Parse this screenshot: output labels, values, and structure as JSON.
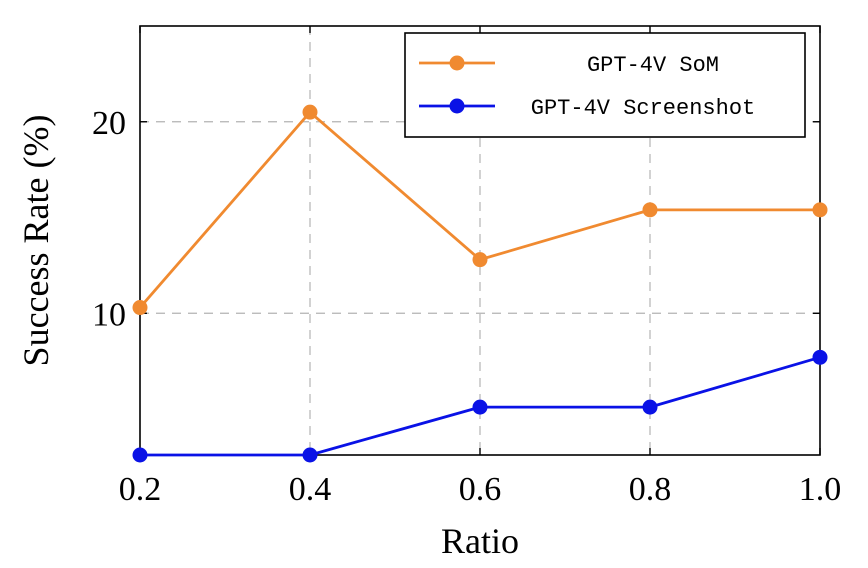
{
  "chart_data": {
    "type": "line",
    "title": "",
    "xlabel": "Ratio",
    "ylabel": "Success Rate (%)",
    "x": [
      0.2,
      0.4,
      0.6,
      0.8,
      1.0
    ],
    "x_tick_labels": [
      "0.2",
      "0.4",
      "0.6",
      "0.8",
      "1.0"
    ],
    "y_ticks": [
      10,
      20
    ],
    "y_tick_labels": [
      "10",
      "20"
    ],
    "xlim": [
      0.2,
      1.0
    ],
    "ylim": [
      2.6,
      25
    ],
    "grid": true,
    "legend_position": "top-right",
    "series": [
      {
        "name": "GPT-4V SoM",
        "color": "#f08a30",
        "values": [
          10.3,
          20.5,
          12.8,
          15.4,
          15.4
        ]
      },
      {
        "name": "GPT-4V Screenshot",
        "color": "#0a12e6",
        "values": [
          2.6,
          2.6,
          5.1,
          5.1,
          7.7
        ]
      }
    ]
  }
}
